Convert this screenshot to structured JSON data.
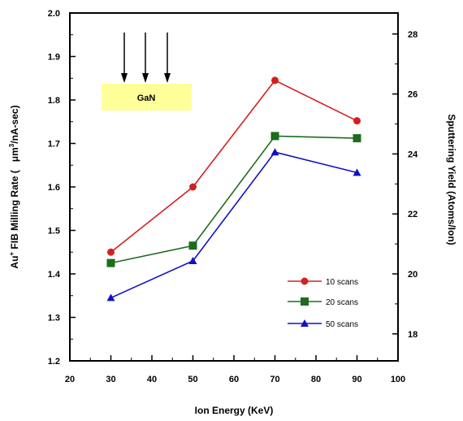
{
  "chart_data": {
    "type": "line",
    "title": "",
    "xlabel": "Ion Energy (KeV)",
    "ylabel_left": {
      "prefix": "Au",
      "superscript": "+",
      "middle": " FIB Milling Rate (   μm",
      "unit_superscript": "3",
      "suffix": "/nA-sec)"
    },
    "ylabel_right": "Sputtering Yield (Atoms/Ion)",
    "xlim": [
      20,
      100
    ],
    "ylim_left": [
      1.2,
      2.0
    ],
    "ylim_right": [
      17.1,
      28.7
    ],
    "x_ticks": [
      "20",
      "30",
      "40",
      "50",
      "60",
      "70",
      "80",
      "90",
      "100"
    ],
    "y_left_ticks": [
      "1.2",
      "1.3",
      "1.4",
      "1.5",
      "1.6",
      "1.7",
      "1.8",
      "1.9",
      "2.0"
    ],
    "y_right_ticks": [
      "18",
      "20",
      "22",
      "24",
      "26",
      "28"
    ],
    "grid": false,
    "legend_position": "lower-right",
    "series": [
      {
        "name": "10 scans",
        "color": "#d42020",
        "marker": "circle",
        "x": [
          30,
          50,
          70,
          90
        ],
        "y": [
          1.45,
          1.6,
          1.845,
          1.752
        ]
      },
      {
        "name": "20 scans",
        "color": "#1e6b1e",
        "marker": "square",
        "x": [
          30,
          50,
          70,
          90
        ],
        "y": [
          1.425,
          1.465,
          1.717,
          1.712
        ]
      },
      {
        "name": "50 scans",
        "color": "#1010c8",
        "marker": "triangle",
        "x": [
          30,
          50,
          70,
          90
        ],
        "y": [
          1.345,
          1.43,
          1.68,
          1.633
        ]
      }
    ],
    "inset": {
      "label": "GaN",
      "box_color": "#ffff99",
      "arrows": 3
    }
  }
}
